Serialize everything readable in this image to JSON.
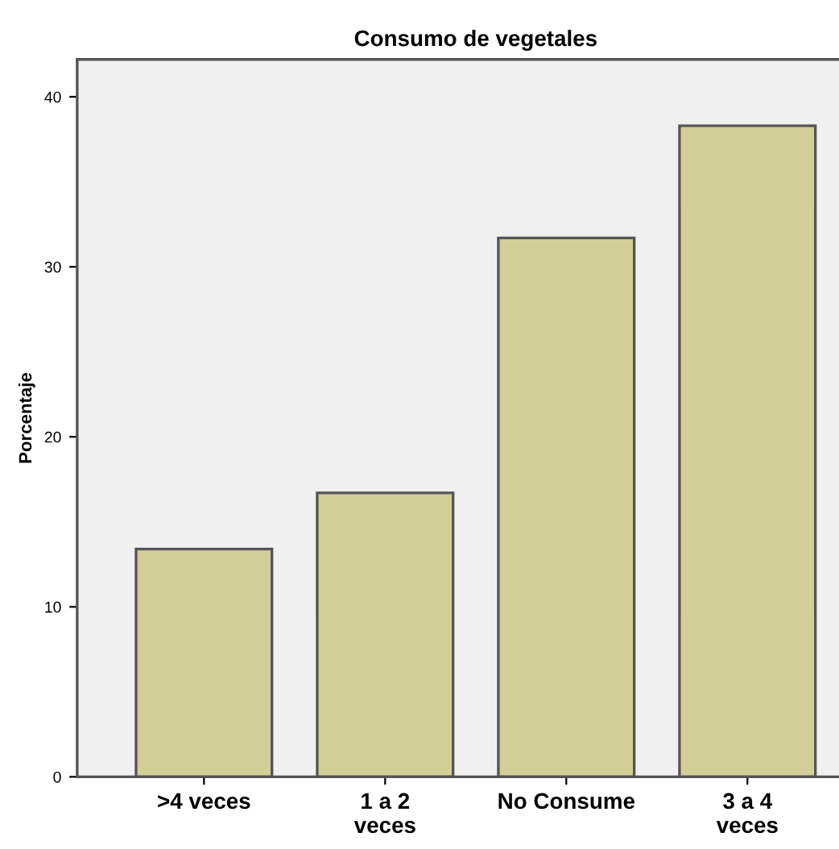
{
  "chart_data": {
    "type": "bar",
    "title": "Consumo de vegetales",
    "ylabel": "Porcentaje",
    "categories": [
      ">4 veces",
      "1 a 2\nveces",
      "No Consume",
      "3 a 4\nveces"
    ],
    "values": [
      13.4,
      16.7,
      31.7,
      38.3
    ],
    "color": "#d3ce97",
    "ylim": [
      0,
      42.2
    ],
    "yticks": [
      0,
      10,
      20,
      30,
      40
    ],
    "grid": false,
    "legend": false
  }
}
